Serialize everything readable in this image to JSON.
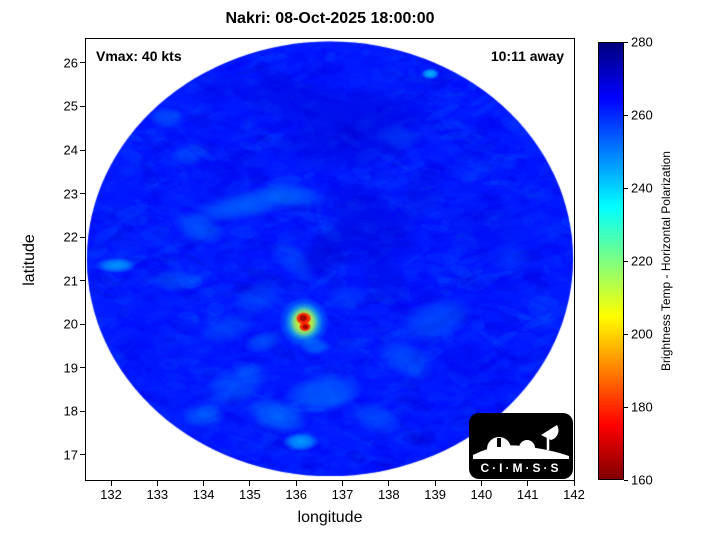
{
  "title": "Nakri: 08-Oct-2025 18:00:00",
  "annotations": {
    "vmax": "Vmax: 40 kts",
    "time_away": "10:11 away"
  },
  "axes": {
    "xlabel": "longitude",
    "ylabel": "latitude",
    "x_ticks": [
      132,
      133,
      134,
      135,
      136,
      137,
      138,
      139,
      140,
      141,
      142
    ],
    "y_ticks": [
      17,
      18,
      19,
      20,
      21,
      22,
      23,
      24,
      25,
      26
    ]
  },
  "colorbar": {
    "label": "Brightness Temp - Horizontal Polarization",
    "ticks": [
      160,
      180,
      200,
      220,
      240,
      260,
      280
    ],
    "range": [
      160,
      280
    ],
    "colormap": "reversed-jet",
    "top_color": "#000080",
    "bottom_color": "#800000"
  },
  "logo": {
    "text": "C·I·M·S·S"
  },
  "chart_data": {
    "type": "heatmap",
    "title": "Nakri: 08-Oct-2025 18:00:00",
    "xlabel": "longitude",
    "ylabel": "latitude",
    "x_range": [
      131.46,
      142.0
    ],
    "y_range": [
      16.42,
      26.55
    ],
    "value_label": "Brightness Temp - Horizontal Polarization",
    "value_range": [
      160,
      280
    ],
    "colormap": "reversed-jet (280 K = dark blue, 160 K = dark red)",
    "swath": {
      "center_lon": 136.73,
      "center_lat": 21.5,
      "radius_lon_deg": 5.25,
      "radius_lat_deg": 4.99,
      "background_temp_K": 262
    },
    "noise": {
      "count": 2800,
      "amplitude_K": 7
    },
    "feature_format": [
      "lon",
      "lat",
      "rx_deg",
      "ry_deg",
      "rot_deg",
      "temp_K",
      "alpha"
    ],
    "features": [
      [
        137.3,
        24.5,
        1.9,
        1.0,
        -15,
        271,
        0.45
      ],
      [
        135.8,
        25.2,
        1.3,
        0.6,
        10,
        270,
        0.4
      ],
      [
        134.3,
        25.4,
        0.7,
        0.4,
        -20,
        269,
        0.35
      ],
      [
        137.6,
        22.4,
        1.3,
        0.8,
        35,
        271,
        0.4
      ],
      [
        136.7,
        21.7,
        0.9,
        0.55,
        -40,
        272,
        0.4
      ],
      [
        137.9,
        21.1,
        1.0,
        0.5,
        60,
        270,
        0.35
      ],
      [
        138.7,
        23.0,
        0.9,
        0.5,
        -60,
        270,
        0.3
      ],
      [
        140.0,
        22.2,
        1.2,
        0.8,
        0,
        268,
        0.3
      ],
      [
        134.6,
        23.5,
        1.0,
        0.6,
        -30,
        268,
        0.3
      ],
      [
        132.9,
        19.3,
        0.8,
        0.55,
        0,
        267,
        0.25
      ],
      [
        139.8,
        19.0,
        0.9,
        0.6,
        20,
        267,
        0.25
      ],
      [
        134.9,
        22.75,
        1.3,
        0.35,
        -12,
        247,
        0.5
      ],
      [
        135.9,
        22.95,
        0.8,
        0.3,
        8,
        249,
        0.45
      ],
      [
        133.9,
        22.2,
        0.6,
        0.35,
        20,
        248,
        0.45
      ],
      [
        133.4,
        21.0,
        0.5,
        0.3,
        0,
        250,
        0.4
      ],
      [
        132.1,
        21.35,
        0.45,
        0.18,
        0,
        243,
        0.75
      ],
      [
        133.2,
        24.75,
        0.4,
        0.25,
        0,
        248,
        0.45
      ],
      [
        133.7,
        23.9,
        0.5,
        0.25,
        -10,
        252,
        0.35
      ],
      [
        138.9,
        25.75,
        0.2,
        0.13,
        0,
        240,
        0.85
      ],
      [
        139.0,
        20.1,
        0.9,
        0.5,
        -20,
        250,
        0.45
      ],
      [
        138.35,
        19.2,
        0.7,
        0.4,
        30,
        249,
        0.45
      ],
      [
        137.7,
        17.85,
        0.6,
        0.35,
        20,
        250,
        0.4
      ],
      [
        136.6,
        18.4,
        0.9,
        0.45,
        -10,
        247,
        0.5
      ],
      [
        135.6,
        17.9,
        0.7,
        0.4,
        15,
        246,
        0.55
      ],
      [
        136.1,
        17.3,
        0.4,
        0.22,
        0,
        241,
        0.75
      ],
      [
        134.7,
        18.6,
        0.8,
        0.45,
        -25,
        250,
        0.45
      ],
      [
        134.0,
        17.9,
        0.5,
        0.3,
        0,
        248,
        0.45
      ],
      [
        134.5,
        19.9,
        0.6,
        0.35,
        -20,
        251,
        0.4
      ],
      [
        135.2,
        20.6,
        0.65,
        0.4,
        -30,
        252,
        0.4
      ],
      [
        135.3,
        19.6,
        0.45,
        0.25,
        -15,
        249,
        0.45
      ],
      [
        135.9,
        21.5,
        0.6,
        0.35,
        40,
        251,
        0.35
      ],
      [
        137.1,
        20.6,
        0.5,
        0.3,
        0,
        252,
        0.35
      ],
      [
        140.6,
        21.5,
        0.5,
        0.35,
        0,
        253,
        0.3
      ],
      [
        136.4,
        19.5,
        0.35,
        0.2,
        0,
        246,
        0.5
      ],
      [
        138.2,
        24.3,
        0.5,
        0.3,
        15,
        252,
        0.3
      ],
      [
        136.17,
        20.05,
        0.55,
        0.58,
        0,
        238,
        0.65
      ],
      [
        136.17,
        20.05,
        0.4,
        0.45,
        0,
        222,
        0.75
      ],
      [
        136.17,
        20.05,
        0.3,
        0.35,
        0,
        205,
        0.85
      ],
      [
        136.16,
        20.13,
        0.17,
        0.15,
        0,
        178,
        0.95
      ],
      [
        136.19,
        19.94,
        0.13,
        0.11,
        0,
        178,
        0.95
      ],
      [
        136.15,
        20.14,
        0.09,
        0.08,
        0,
        164,
        1
      ],
      [
        136.2,
        19.94,
        0.07,
        0.06,
        0,
        164,
        1
      ]
    ]
  }
}
